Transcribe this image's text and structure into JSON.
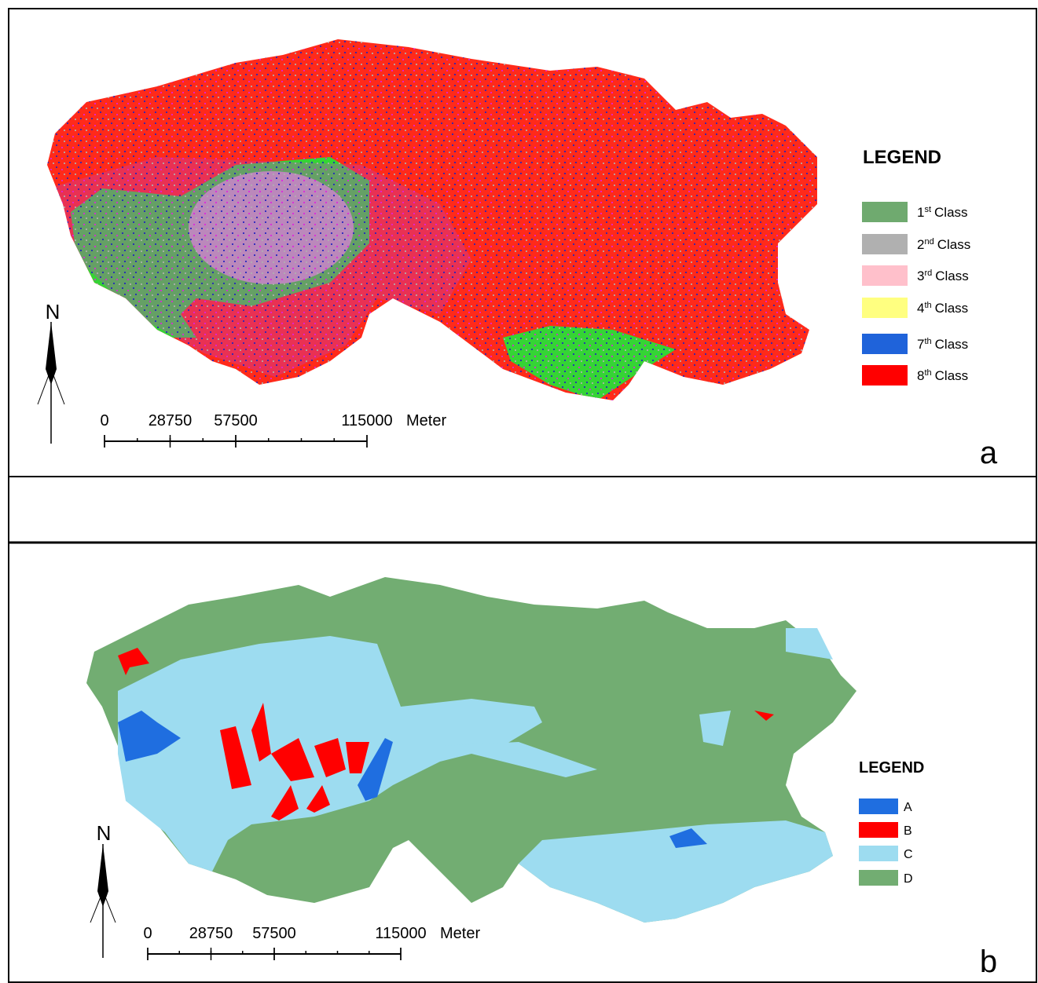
{
  "panel_a": {
    "label": "a",
    "north": "N",
    "legend": {
      "title": "LEGEND",
      "items": [
        {
          "n": "1",
          "sup": "st",
          "name": "Class",
          "color": "#6faa6f"
        },
        {
          "n": "2",
          "sup": "nd",
          "name": "Class",
          "color": "#b0b0b0"
        },
        {
          "n": "3",
          "sup": "rd",
          "name": "Class",
          "color": "#ffc0cb"
        },
        {
          "n": "4",
          "sup": "th",
          "name": "Class",
          "color": "#ffff80"
        },
        {
          "n": "7",
          "sup": "th",
          "name": "Class",
          "color": "#1f63da"
        },
        {
          "n": "8",
          "sup": "th",
          "name": "Class",
          "color": "#ff0000"
        }
      ]
    },
    "scale": {
      "ticks": [
        0,
        28750,
        57500,
        115000
      ],
      "unit": "Meter"
    }
  },
  "panel_b": {
    "label": "b",
    "north": "N",
    "legend": {
      "title": "LEGEND",
      "items": [
        {
          "name": "A",
          "color": "#1f6ee0"
        },
        {
          "name": "B",
          "color": "#ff0000"
        },
        {
          "name": "C",
          "color": "#9ddcf0"
        },
        {
          "name": "D",
          "color": "#72ad72"
        }
      ]
    },
    "scale": {
      "ticks": [
        0,
        28750,
        57500,
        115000
      ],
      "unit": "Meter"
    }
  }
}
